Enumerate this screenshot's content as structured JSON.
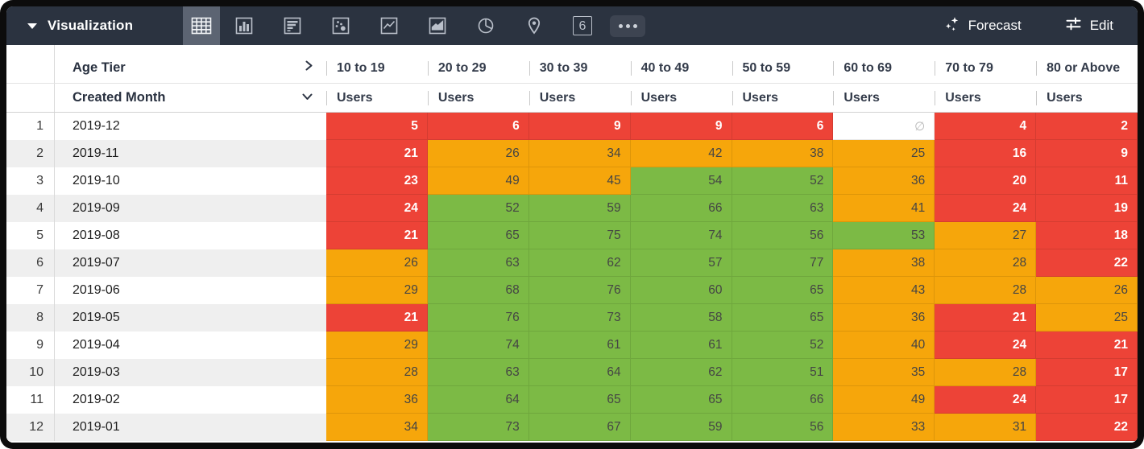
{
  "toolbar": {
    "title": "Visualization",
    "vis_types": [
      "table",
      "column-chart",
      "bar-chart",
      "scatter-chart",
      "line-chart",
      "area-chart",
      "pie-chart",
      "map",
      "single-value",
      "more"
    ],
    "selected_vis_type": "table",
    "single_value_label": "6",
    "forecast_label": "Forecast",
    "edit_label": "Edit"
  },
  "table": {
    "dimension_header": "Age Tier",
    "row_dimension_header": "Created Month",
    "measure_label": "Users",
    "columns": [
      "10 to 19",
      "20 to 29",
      "30 to 39",
      "40 to 49",
      "50 to 59",
      "60 to 69",
      "70 to 79",
      "80 or Above"
    ],
    "null_symbol": "∅",
    "rows": [
      {
        "index": 1,
        "month": "2019-12",
        "values": [
          5,
          6,
          9,
          9,
          6,
          null,
          4,
          2
        ],
        "colors": [
          "red",
          "red",
          "red",
          "red",
          "red",
          "empty",
          "red",
          "red"
        ]
      },
      {
        "index": 2,
        "month": "2019-11",
        "values": [
          21,
          26,
          34,
          42,
          38,
          25,
          16,
          9
        ],
        "colors": [
          "red",
          "orange",
          "orange",
          "orange",
          "orange",
          "orange",
          "red",
          "red"
        ]
      },
      {
        "index": 3,
        "month": "2019-10",
        "values": [
          23,
          49,
          45,
          54,
          52,
          36,
          20,
          11
        ],
        "colors": [
          "red",
          "orange",
          "orange",
          "green",
          "green",
          "orange",
          "red",
          "red"
        ]
      },
      {
        "index": 4,
        "month": "2019-09",
        "values": [
          24,
          52,
          59,
          66,
          63,
          41,
          24,
          19
        ],
        "colors": [
          "red",
          "green",
          "green",
          "green",
          "green",
          "orange",
          "red",
          "red"
        ]
      },
      {
        "index": 5,
        "month": "2019-08",
        "values": [
          21,
          65,
          75,
          74,
          56,
          53,
          27,
          18
        ],
        "colors": [
          "red",
          "green",
          "green",
          "green",
          "green",
          "green",
          "orange",
          "red"
        ]
      },
      {
        "index": 6,
        "month": "2019-07",
        "values": [
          26,
          63,
          62,
          57,
          77,
          38,
          28,
          22
        ],
        "colors": [
          "orange",
          "green",
          "green",
          "green",
          "green",
          "orange",
          "orange",
          "red"
        ]
      },
      {
        "index": 7,
        "month": "2019-06",
        "values": [
          29,
          68,
          76,
          60,
          65,
          43,
          28,
          26
        ],
        "colors": [
          "orange",
          "green",
          "green",
          "green",
          "green",
          "orange",
          "orange",
          "orange"
        ]
      },
      {
        "index": 8,
        "month": "2019-05",
        "values": [
          21,
          76,
          73,
          58,
          65,
          36,
          21,
          25
        ],
        "colors": [
          "red",
          "green",
          "green",
          "green",
          "green",
          "orange",
          "red",
          "orange"
        ]
      },
      {
        "index": 9,
        "month": "2019-04",
        "values": [
          29,
          74,
          61,
          61,
          52,
          40,
          24,
          21
        ],
        "colors": [
          "orange",
          "green",
          "green",
          "green",
          "green",
          "orange",
          "red",
          "red"
        ]
      },
      {
        "index": 10,
        "month": "2019-03",
        "values": [
          28,
          63,
          64,
          62,
          51,
          35,
          28,
          17
        ],
        "colors": [
          "orange",
          "green",
          "green",
          "green",
          "green",
          "orange",
          "orange",
          "red"
        ]
      },
      {
        "index": 11,
        "month": "2019-02",
        "values": [
          36,
          64,
          65,
          65,
          66,
          49,
          24,
          17
        ],
        "colors": [
          "orange",
          "green",
          "green",
          "green",
          "green",
          "orange",
          "red",
          "red"
        ]
      },
      {
        "index": 12,
        "month": "2019-01",
        "values": [
          34,
          73,
          67,
          59,
          56,
          33,
          31,
          22
        ],
        "colors": [
          "orange",
          "green",
          "green",
          "green",
          "green",
          "orange",
          "orange",
          "red"
        ]
      }
    ]
  },
  "colors": {
    "red": "#ED4337",
    "orange": "#F6A60B",
    "green": "#7CBA45",
    "empty": "#FFFFFF",
    "topbar": "#2B3340"
  }
}
